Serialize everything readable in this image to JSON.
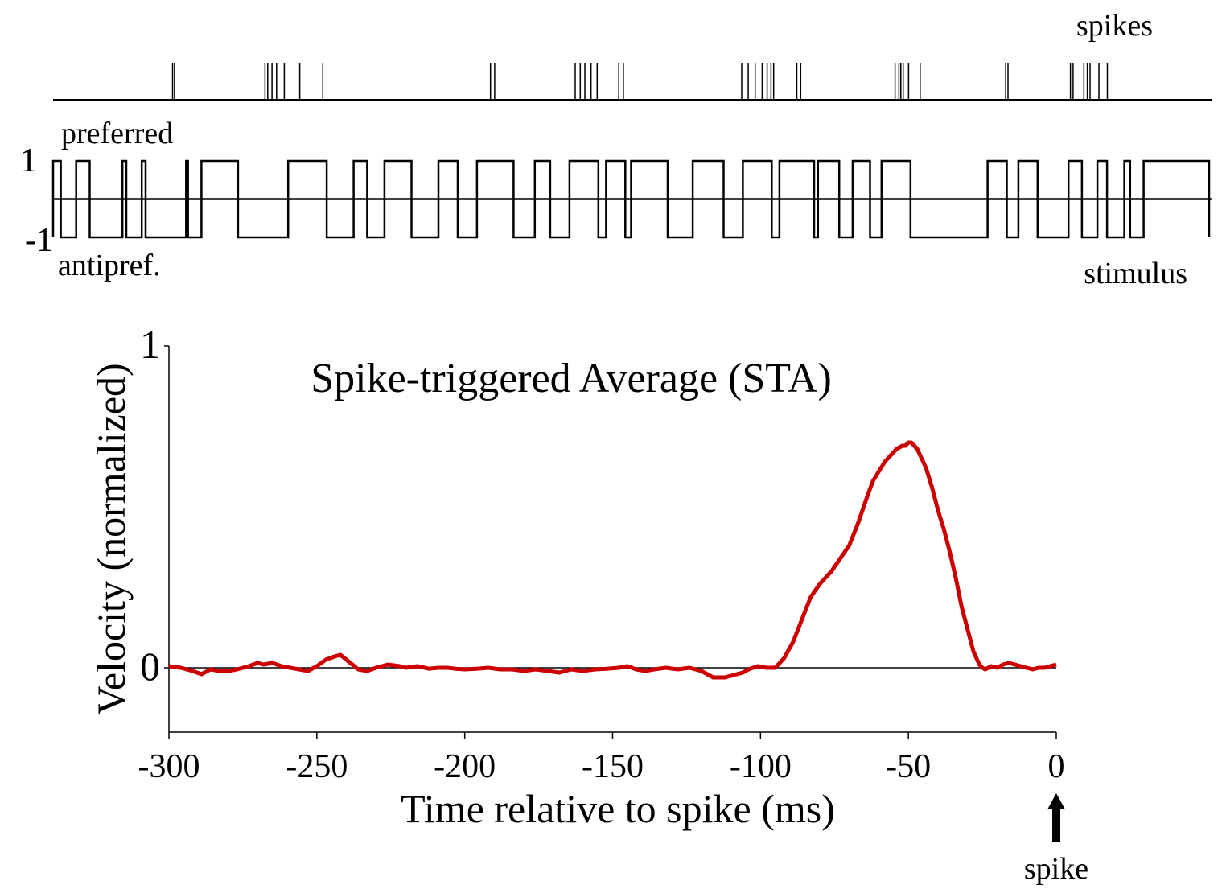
{
  "raster": {
    "label": "spikes",
    "spike_times": [
      -269,
      -268.5,
      -245,
      -244.3,
      -243.2,
      -242,
      -240,
      -236,
      -230,
      -186.5,
      -185.4,
      -164.5,
      -163.2,
      -162,
      -160.4,
      -158.8,
      -153.2,
      -152,
      -121.3,
      -119.6,
      -117.8,
      -116,
      -114.7,
      -113.7,
      -113,
      -107,
      -106,
      -81.5,
      -80.5,
      -80,
      -79.4,
      -78,
      -75,
      -52.8,
      -52.2,
      -36,
      -35.3,
      -32.5,
      -31.6,
      -30.9,
      -28.6,
      -26.4
    ]
  },
  "stimulus": {
    "label": "stimulus",
    "top_label": "preferred",
    "bottom_label": "antipref.",
    "ytick_high": "1",
    "ytick_low": "-1",
    "transition_times": [
      -298,
      -294,
      -290.5,
      -282,
      -281,
      -277,
      -276,
      -265.5,
      -265,
      -261.5,
      -252,
      -239,
      -229,
      -222,
      -218.5,
      -214,
      -207,
      -200,
      -195,
      -190,
      -180.5,
      -175,
      -171,
      -166,
      -158.5,
      -156.5,
      -151.5,
      -150,
      -140.5,
      -134,
      -126,
      -121,
      -113.5,
      -111.5,
      -102.5,
      -101.5,
      -96,
      -92.5,
      -88,
      -85,
      -77.5,
      -57.5,
      -52.5,
      -49.5,
      -44.5,
      -36.5,
      -33,
      -29,
      -26.5,
      -22,
      -20.5,
      -17
    ]
  },
  "chart_data": {
    "type": "line",
    "title": "Spike-triggered Average (STA)",
    "xlabel": "Time relative to spike (ms)",
    "ylabel": "Velocity (normalized)",
    "xlim": [
      -300,
      0
    ],
    "ylim": [
      -0.2,
      1
    ],
    "xticks": [
      "-300",
      "-250",
      "-200",
      "-150",
      "-100",
      "-50",
      "0"
    ],
    "yticks": [
      "0",
      "1"
    ],
    "spike_marker_label": "spike",
    "series": [
      {
        "color": "#cc0000",
        "x": [
          -300,
          -296,
          -292,
          -289,
          -286,
          -283,
          -280,
          -277,
          -273,
          -270,
          -268,
          -265,
          -262,
          -259,
          -256,
          -253,
          -250,
          -247,
          -244,
          -242,
          -240,
          -238,
          -236,
          -233,
          -230,
          -226,
          -222,
          -220,
          -216,
          -212,
          -209,
          -206,
          -203,
          -200,
          -196,
          -192,
          -188,
          -184,
          -180,
          -176,
          -172,
          -168,
          -164,
          -160,
          -156,
          -152,
          -148,
          -145,
          -142,
          -139,
          -136,
          -132,
          -128,
          -124,
          -120,
          -116,
          -112,
          -110,
          -108,
          -106,
          -104,
          -101,
          -98,
          -95,
          -92,
          -89,
          -86,
          -83,
          -80,
          -78,
          -76,
          -73,
          -70,
          -67,
          -64,
          -62,
          -60,
          -58,
          -56,
          -54,
          -52,
          -51,
          -50,
          -49,
          -48,
          -47,
          -46,
          -44,
          -42,
          -40,
          -38,
          -36,
          -34,
          -32,
          -30,
          -28,
          -26,
          -25,
          -24,
          -22,
          -20,
          -18,
          -16,
          -14,
          -12,
          -10,
          -8,
          -6,
          -4,
          -2,
          0
        ],
        "y": [
          0.005,
          0.0,
          -0.01,
          -0.02,
          -0.005,
          -0.01,
          -0.01,
          -0.005,
          0.005,
          0.015,
          0.01,
          0.015,
          0.005,
          0.0,
          -0.005,
          -0.01,
          0.005,
          0.025,
          0.035,
          0.04,
          0.025,
          0.01,
          -0.005,
          -0.01,
          0.0,
          0.01,
          0.005,
          0.0,
          0.005,
          -0.003,
          0.0,
          0.0,
          -0.003,
          -0.005,
          -0.003,
          0.0,
          -0.005,
          -0.005,
          -0.01,
          -0.005,
          -0.01,
          -0.015,
          -0.005,
          -0.01,
          -0.005,
          -0.003,
          0.0,
          0.005,
          -0.005,
          -0.01,
          -0.005,
          0.0,
          -0.005,
          0.0,
          -0.01,
          -0.03,
          -0.03,
          -0.025,
          -0.02,
          -0.015,
          -0.005,
          0.005,
          0.0,
          0.0,
          0.03,
          0.08,
          0.15,
          0.22,
          0.26,
          0.28,
          0.3,
          0.34,
          0.38,
          0.45,
          0.53,
          0.58,
          0.61,
          0.64,
          0.66,
          0.68,
          0.69,
          0.69,
          0.7,
          0.7,
          0.69,
          0.68,
          0.66,
          0.62,
          0.56,
          0.49,
          0.43,
          0.36,
          0.28,
          0.19,
          0.12,
          0.05,
          0.01,
          0.0,
          -0.005,
          0.005,
          0.0,
          0.01,
          0.015,
          0.01,
          0.005,
          0.0,
          -0.005,
          0.0,
          0.0,
          0.005,
          0.01
        ]
      }
    ]
  }
}
